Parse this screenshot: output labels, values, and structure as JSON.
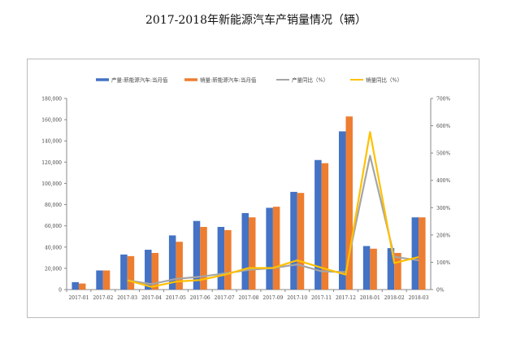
{
  "chart_data": {
    "type": "bar+line",
    "title": "2017-2018年新能源汽车产销量情况（辆）",
    "categories": [
      "2017-01",
      "2017-02",
      "2017-03",
      "2017-04",
      "2017-05",
      "2017-06",
      "2017-07",
      "2017-08",
      "2017-09",
      "2017-10",
      "2017-11",
      "2017-12",
      "2018-01",
      "2018-02",
      "2018-03"
    ],
    "series": [
      {
        "name": "产量:新能源汽车:当月值",
        "type": "bar",
        "axis": "left",
        "color": "#4472C4",
        "values": [
          7000,
          18000,
          33000,
          37500,
          51000,
          64600,
          59000,
          72000,
          77000,
          92000,
          122000,
          149000,
          41000,
          39000,
          68000
        ]
      },
      {
        "name": "销量:新能源汽车:当月值",
        "type": "bar",
        "axis": "left",
        "color": "#ED7D31",
        "values": [
          5700,
          18000,
          31500,
          34500,
          45000,
          59000,
          56000,
          68000,
          78000,
          91000,
          119000,
          163000,
          38500,
          34500,
          68000
        ]
      },
      {
        "name": "产量同比（%）",
        "type": "line",
        "axis": "right",
        "color": "#A5A5A5",
        "values": [
          null,
          null,
          34,
          20,
          39,
          47,
          59,
          72,
          79,
          92,
          67,
          64,
          490,
          120,
          107
        ]
      },
      {
        "name": "销量同比（%）",
        "type": "line",
        "axis": "right",
        "color": "#FFC000",
        "values": [
          null,
          null,
          34,
          10,
          29,
          35,
          54,
          79,
          79,
          107,
          80,
          55,
          577,
          97,
          119
        ]
      }
    ],
    "y_left": {
      "range": [
        0,
        180000
      ],
      "ticks": [
        "0",
        "20,000",
        "40,000",
        "60,000",
        "80,000",
        "100,000",
        "120,000",
        "140,000",
        "160,000",
        "180,000"
      ]
    },
    "y_right": {
      "range": [
        0,
        700
      ],
      "ticks": [
        "0%",
        "100%",
        "200%",
        "300%",
        "400%",
        "500%",
        "600%",
        "700%"
      ]
    },
    "grid": false,
    "legend": "top"
  }
}
